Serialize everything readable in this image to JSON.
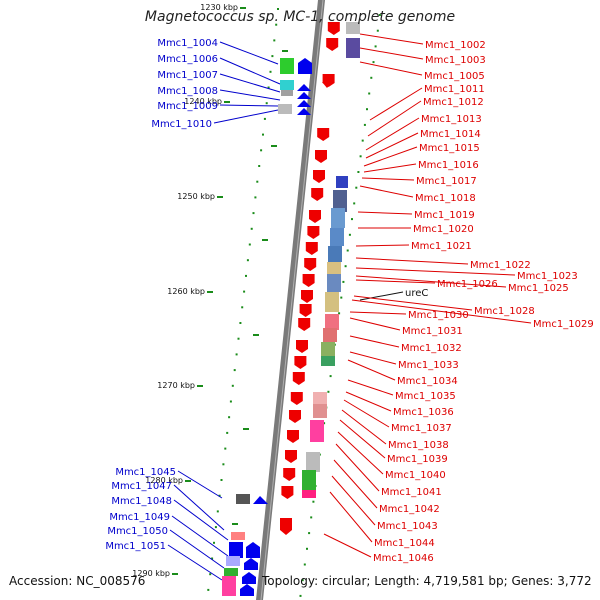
{
  "title": "Magnetococcus sp. MC-1, complete genome",
  "accession_text": "Accession: NC_008576",
  "summary_text": "Topology: circular; Length: 4,719,581 bp; Genes: 3,772",
  "colors": {
    "forward_label": "#0000cc",
    "reverse_label": "#dd0000",
    "axis": "#7a7a7a",
    "tick": "#1a8c1a",
    "forward_gene": "#0000ee",
    "reverse_gene": "#ee0000"
  },
  "kbp_ticks": [
    "1230 kbp",
    "1240 kbp",
    "1250 kbp",
    "1260 kbp",
    "1270 kbp",
    "1280 kbp",
    "1290 kbp"
  ],
  "left_labels": [
    "Mmc1_1004",
    "Mmc1_1006",
    "Mmc1_1007",
    "Mmc1_1008",
    "Mmc1_1009",
    "Mmc1_1010",
    "Mmc1_1045",
    "Mmc1_1047",
    "Mmc1_1048",
    "Mmc1_1049",
    "Mmc1_1050",
    "Mmc1_1051"
  ],
  "right_labels": [
    "Mmc1_1002",
    "Mmc1_1003",
    "Mmc1_1005",
    "Mmc1_1011",
    "Mmc1_1012",
    "Mmc1_1013",
    "Mmc1_1014",
    "Mmc1_1015",
    "Mmc1_1016",
    "Mmc1_1017",
    "Mmc1_1018",
    "Mmc1_1019",
    "Mmc1_1020",
    "Mmc1_1021",
    "Mmc1_1022",
    "Mmc1_1023",
    "Mmc1_1026",
    "Mmc1_1025",
    "ureC",
    "Mmc1_1028",
    "Mmc1_1029",
    "Mmc1_1030",
    "Mmc1_1031",
    "Mmc1_1032",
    "Mmc1_1033",
    "Mmc1_1034",
    "Mmc1_1035",
    "Mmc1_1036",
    "Mmc1_1037",
    "Mmc1_1038",
    "Mmc1_1039",
    "Mmc1_1040",
    "Mmc1_1041",
    "Mmc1_1042",
    "Mmc1_1043",
    "Mmc1_1044",
    "Mmc1_1046"
  ]
}
